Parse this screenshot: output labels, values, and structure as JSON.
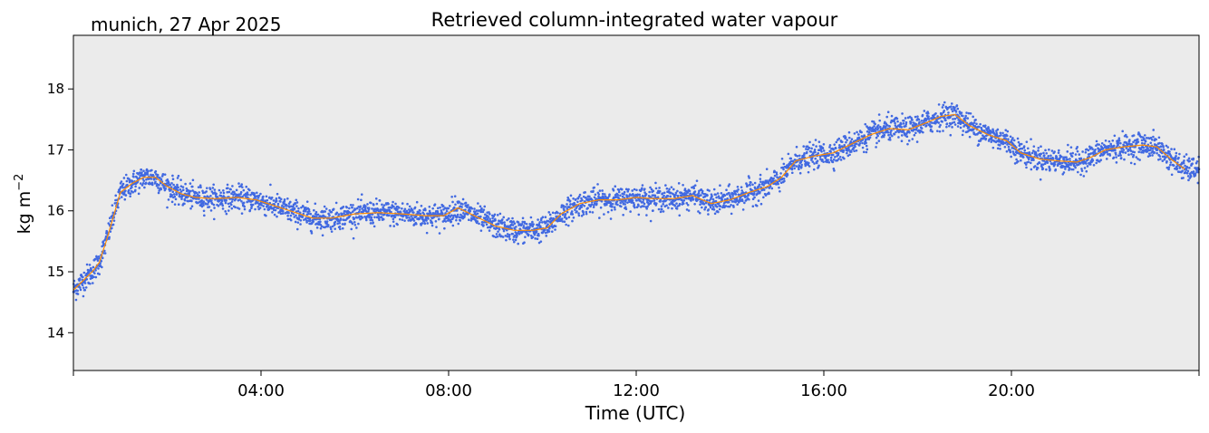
{
  "header": {
    "location_date": "munich, 27 Apr 2025"
  },
  "colors": {
    "background": "#ebebeb",
    "scatter": "#4169e1",
    "smoothed_line": "#ff8c00"
  },
  "chart_data": {
    "type": "scatter",
    "title": "Retrieved column-integrated water vapour",
    "xlabel": "Time (UTC)",
    "ylabel": "kg m",
    "ylabel_superscript": "−2",
    "xlim": [
      0,
      24
    ],
    "ylim": [
      13.38,
      18.88
    ],
    "x_ticks": [
      {
        "value": 0,
        "label": ""
      },
      {
        "value": 4,
        "label": "04:00"
      },
      {
        "value": 8,
        "label": "08:00"
      },
      {
        "value": 12,
        "label": "12:00"
      },
      {
        "value": 16,
        "label": "16:00"
      },
      {
        "value": 20,
        "label": "20:00"
      },
      {
        "value": 24,
        "label": ""
      }
    ],
    "y_ticks": [
      {
        "value": 14,
        "label": "14"
      },
      {
        "value": 15,
        "label": "15"
      },
      {
        "value": 16,
        "label": "16"
      },
      {
        "value": 17,
        "label": "17"
      },
      {
        "value": 18,
        "label": "18"
      }
    ],
    "grid": false,
    "series": [
      {
        "kind": "smoothed",
        "x": [
          0.0,
          0.2,
          0.4,
          0.55,
          0.7,
          0.85,
          1.0,
          1.25,
          1.5,
          1.75,
          2.0,
          2.3,
          2.6,
          3.0,
          3.5,
          3.9,
          4.3,
          4.7,
          5.1,
          5.5,
          6.0,
          6.5,
          7.0,
          7.5,
          7.9,
          8.2,
          8.6,
          9.0,
          9.4,
          9.8,
          10.1,
          10.4,
          10.8,
          11.2,
          11.6,
          12.0,
          12.4,
          12.8,
          13.2,
          13.6,
          14.0,
          14.4,
          14.8,
          15.1,
          15.4,
          15.8,
          16.2,
          16.6,
          17.0,
          17.4,
          17.8,
          18.2,
          18.5,
          18.8,
          19.1,
          19.5,
          19.9,
          20.2,
          20.6,
          21.0,
          21.4,
          21.7,
          22.0,
          22.4,
          22.8,
          23.1,
          23.4,
          23.7
        ],
        "y": [
          14.7,
          14.85,
          15.0,
          15.15,
          15.5,
          15.9,
          16.3,
          16.45,
          16.55,
          16.55,
          16.4,
          16.28,
          16.22,
          16.2,
          16.22,
          16.18,
          16.08,
          15.98,
          15.88,
          15.88,
          15.95,
          15.97,
          15.95,
          15.92,
          15.92,
          16.05,
          15.9,
          15.75,
          15.68,
          15.68,
          15.72,
          15.95,
          16.12,
          16.18,
          16.18,
          16.22,
          16.2,
          16.2,
          16.25,
          16.12,
          16.18,
          16.3,
          16.4,
          16.55,
          16.82,
          16.9,
          16.95,
          17.1,
          17.25,
          17.35,
          17.33,
          17.45,
          17.55,
          17.58,
          17.4,
          17.25,
          17.15,
          16.95,
          16.85,
          16.82,
          16.8,
          16.88,
          17.0,
          17.05,
          17.08,
          17.05,
          16.85,
          16.68
        ]
      }
    ],
    "scatter_spread": 0.18
  }
}
